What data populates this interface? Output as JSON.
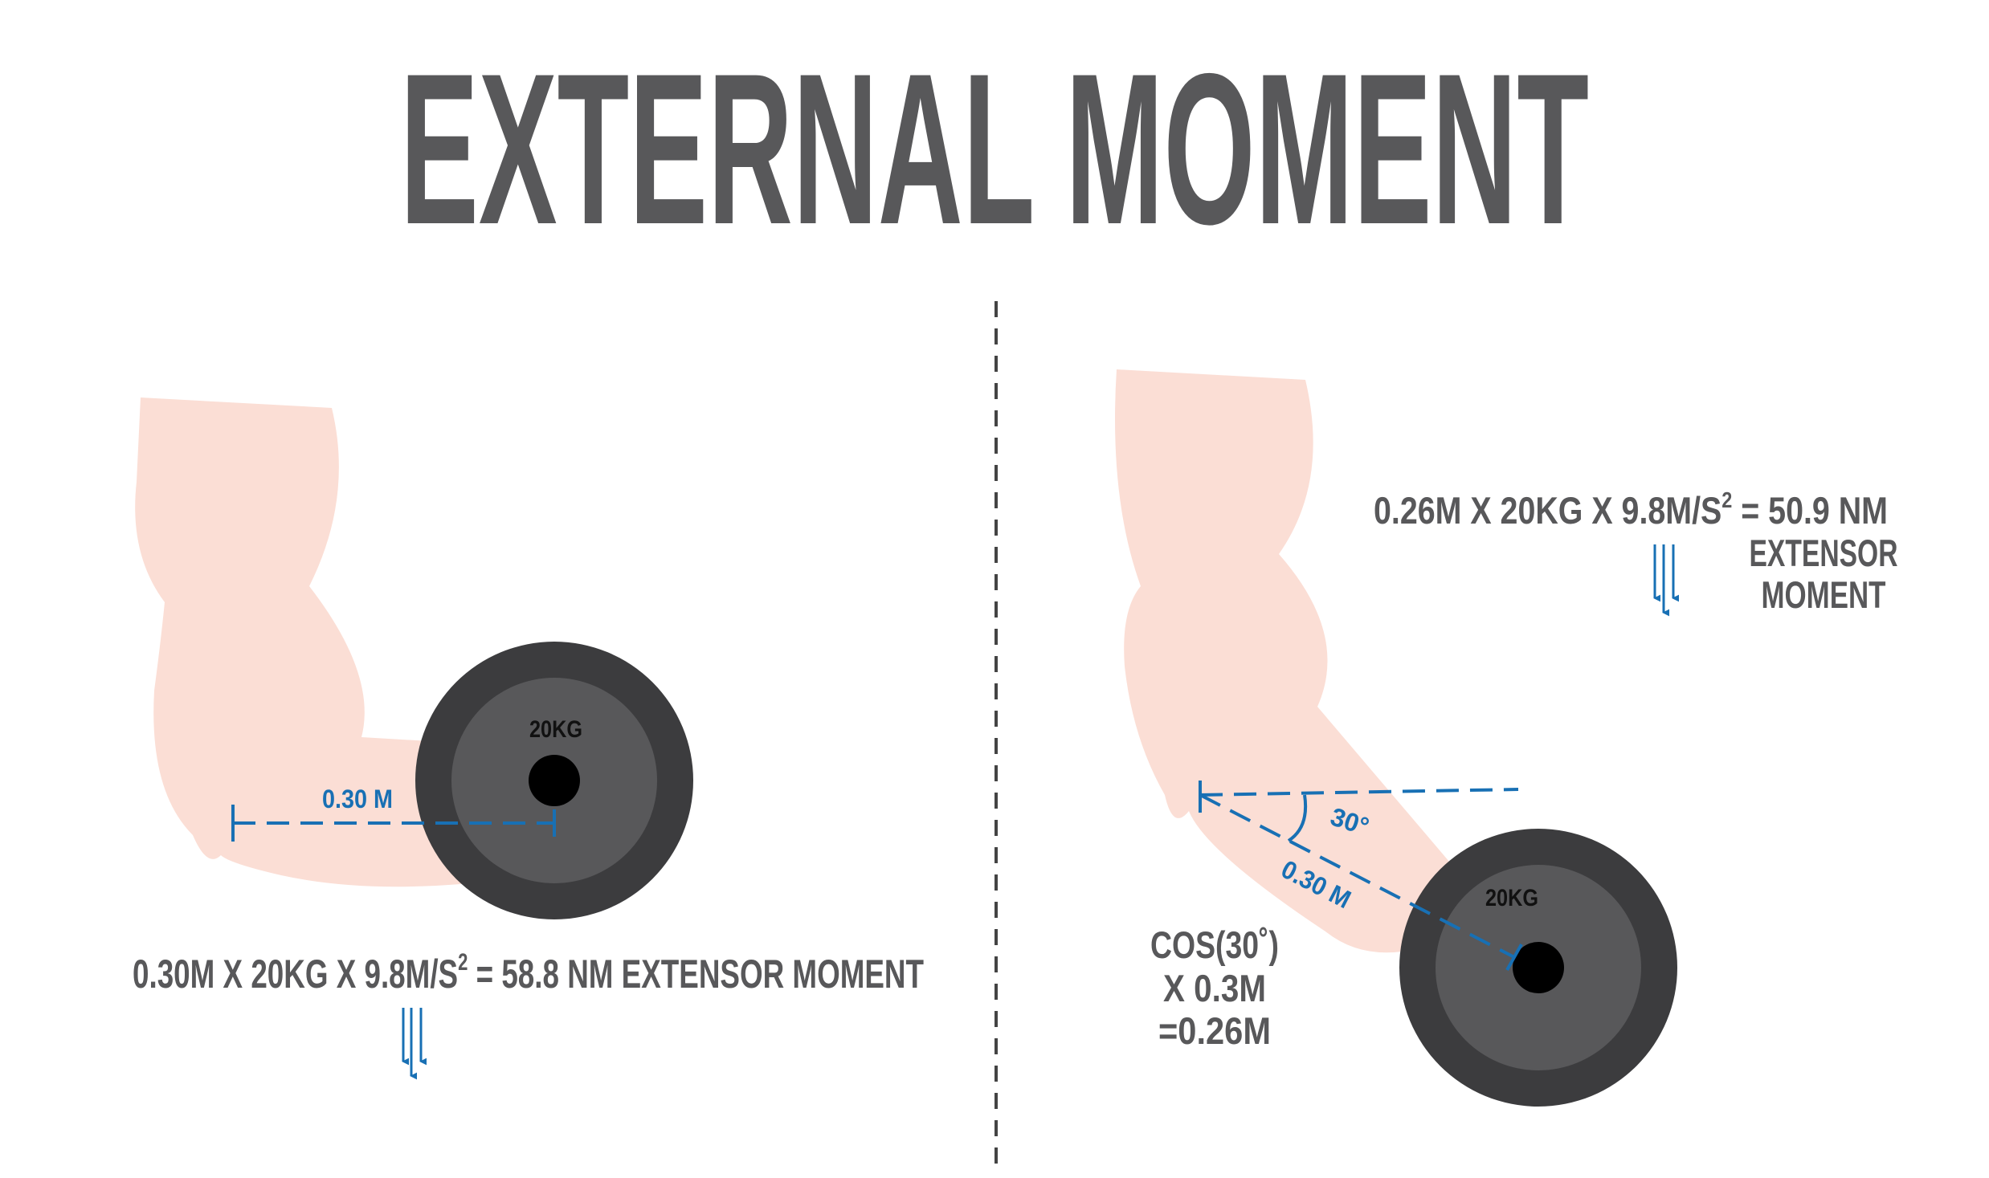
{
  "title": "EXTERNAL MOMENT",
  "left": {
    "distance_label": "0.30 M",
    "plate_label": "20KG",
    "formula": "0.30M X 20KG X 9.8M/S",
    "formula_sup": "2",
    "formula_result": " = 58.8 NM EXTENSOR MOMENT"
  },
  "right": {
    "distance_label": "0.30 M",
    "angle_label": "30°",
    "plate_label": "20KG",
    "formula": "0.26M X 20KG X 9.8M/S",
    "formula_sup": "2",
    "formula_result": " = 50.9 NM",
    "result_line2": "EXTENSOR",
    "result_line3": "MOMENT",
    "cos_line1": "COS(30˚)",
    "cos_line2": "X 0.3M",
    "cos_line3": "=0.26M"
  },
  "colors": {
    "skin": "#fbded5",
    "plate_outer": "#3c3c3e",
    "plate_inner": "#58585a",
    "hole": "#000000",
    "annotation": "#1870b4",
    "text": "#58585a",
    "divider": "#444444"
  }
}
